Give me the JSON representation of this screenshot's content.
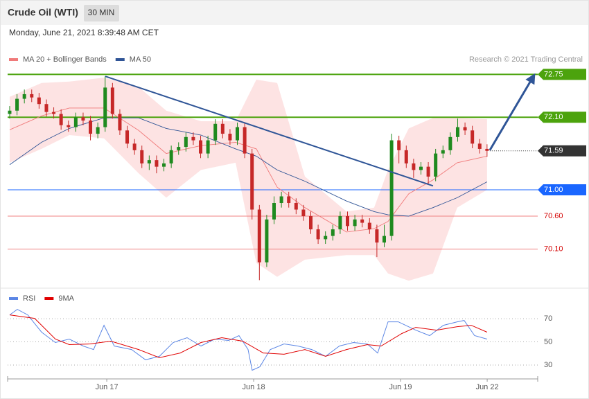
{
  "header": {
    "instrument": "Crude Oil (WTI)",
    "interval": "30 MIN",
    "timestamp": "Monday, June 21, 2021 8:39:48 AM CET"
  },
  "chart_data": [
    {
      "type": "candlestick",
      "credit": "Research © 2021 Trading Central",
      "xlim": [
        16.325,
        19.934
      ],
      "ylim": [
        69.55,
        72.88
      ],
      "up_color": "#1f8a1f",
      "down_color": "#c62828",
      "x": [
        16.339,
        16.389,
        16.439,
        16.489,
        16.539,
        16.589,
        16.639,
        16.689,
        16.739,
        16.789,
        16.839,
        16.889,
        16.939,
        16.989,
        17.039,
        17.089,
        17.139,
        17.189,
        17.239,
        17.289,
        17.339,
        17.389,
        17.439,
        17.489,
        17.539,
        17.589,
        17.639,
        17.689,
        17.739,
        17.789,
        17.839,
        17.889,
        17.939,
        17.989,
        18.039,
        18.089,
        18.139,
        18.189,
        18.239,
        18.289,
        18.339,
        18.389,
        18.439,
        18.489,
        18.539,
        18.589,
        18.639,
        18.689,
        18.739,
        18.789,
        18.839,
        18.889,
        18.939,
        18.989,
        19.039,
        19.089,
        19.139,
        19.189,
        19.239,
        19.289,
        19.339,
        19.389,
        19.439,
        19.489,
        19.539,
        19.589
      ],
      "open": [
        72.15,
        72.2,
        72.38,
        72.45,
        72.4,
        72.3,
        72.18,
        72.15,
        71.98,
        71.95,
        72.1,
        72.05,
        71.85,
        71.95,
        72.55,
        72.15,
        71.9,
        71.7,
        71.6,
        71.4,
        71.45,
        71.35,
        71.4,
        71.6,
        71.65,
        71.8,
        71.75,
        71.55,
        71.75,
        72.0,
        71.85,
        71.75,
        71.95,
        71.55,
        70.7,
        69.9,
        70.55,
        70.8,
        70.9,
        70.8,
        70.7,
        70.6,
        70.4,
        70.25,
        70.3,
        70.4,
        70.6,
        70.45,
        70.55,
        70.5,
        70.4,
        70.2,
        70.3,
        71.75,
        71.6,
        71.4,
        71.3,
        71.35,
        71.2,
        71.55,
        71.6,
        71.8,
        71.95,
        71.9,
        71.7,
        71.62
      ],
      "high": [
        72.27,
        72.45,
        72.52,
        72.52,
        72.47,
        72.37,
        72.25,
        72.22,
        72.05,
        72.17,
        72.17,
        72.12,
        72.02,
        72.72,
        72.62,
        72.22,
        71.97,
        71.77,
        71.67,
        71.52,
        71.52,
        71.47,
        71.67,
        71.72,
        71.87,
        71.87,
        71.82,
        71.82,
        72.07,
        72.07,
        71.92,
        72.02,
        72.02,
        71.62,
        70.77,
        70.62,
        70.9,
        70.97,
        70.97,
        70.87,
        70.77,
        70.67,
        70.47,
        70.37,
        70.47,
        70.67,
        70.67,
        70.62,
        70.62,
        70.57,
        70.47,
        70.47,
        71.85,
        71.82,
        71.67,
        71.47,
        71.42,
        71.42,
        71.62,
        71.67,
        71.87,
        72.08,
        72.02,
        71.97,
        71.77,
        71.69
      ],
      "low": [
        72.08,
        72.13,
        72.31,
        72.33,
        72.23,
        72.11,
        72.08,
        71.91,
        71.88,
        71.88,
        71.98,
        71.75,
        71.78,
        71.88,
        72.08,
        71.83,
        71.63,
        71.53,
        71.33,
        71.3,
        71.25,
        71.28,
        71.33,
        71.53,
        71.58,
        71.68,
        71.48,
        71.48,
        71.68,
        71.78,
        71.68,
        71.68,
        71.48,
        70.55,
        69.63,
        69.83,
        70.48,
        70.73,
        70.73,
        70.63,
        70.53,
        70.33,
        70.18,
        70.18,
        70.23,
        70.33,
        70.38,
        70.38,
        70.43,
        70.33,
        69.98,
        70.13,
        70.23,
        71.4,
        71.33,
        71.18,
        71.23,
        71.08,
        71.13,
        71.48,
        71.53,
        71.73,
        71.83,
        71.63,
        71.55,
        71.5
      ],
      "close": [
        72.2,
        72.38,
        72.45,
        72.4,
        72.3,
        72.18,
        72.15,
        71.98,
        71.95,
        72.1,
        72.05,
        71.85,
        71.95,
        72.55,
        72.15,
        71.9,
        71.7,
        71.6,
        71.4,
        71.45,
        71.35,
        71.4,
        71.6,
        71.65,
        71.8,
        71.75,
        71.55,
        71.75,
        72.0,
        71.85,
        71.75,
        71.95,
        71.55,
        70.7,
        69.9,
        70.55,
        70.8,
        70.9,
        70.8,
        70.7,
        70.6,
        70.4,
        70.25,
        70.3,
        70.4,
        70.6,
        70.45,
        70.55,
        70.5,
        70.4,
        70.2,
        70.3,
        71.75,
        71.6,
        71.4,
        71.3,
        71.35,
        71.2,
        71.55,
        71.6,
        71.8,
        71.95,
        71.9,
        71.7,
        71.62,
        71.59
      ],
      "series": [
        {
          "name": "MA 20 + Bollinger Bands",
          "color": "#f07a7a",
          "band_color": "#fde3e3",
          "x": [
            16.339,
            16.556,
            16.745,
            16.981,
            17.217,
            17.405,
            17.641,
            17.877,
            18.018,
            18.16,
            18.349,
            18.632,
            18.82,
            18.915,
            19.056,
            19.221,
            19.386,
            19.589
          ],
          "values": [
            71.91,
            72.12,
            72.24,
            72.24,
            71.9,
            71.55,
            71.67,
            71.72,
            71.62,
            71.04,
            70.73,
            70.36,
            70.41,
            70.52,
            70.94,
            71.15,
            71.41,
            71.51
          ],
          "upper": [
            72.41,
            72.62,
            72.64,
            72.7,
            72.56,
            72.2,
            72.04,
            72.04,
            72.67,
            72.62,
            71.2,
            70.67,
            70.73,
            71.3,
            71.93,
            72.09,
            72.09,
            72.07
          ],
          "lower": [
            71.41,
            71.62,
            71.83,
            71.78,
            71.25,
            70.88,
            71.3,
            71.41,
            69.89,
            69.68,
            69.94,
            70.01,
            70.01,
            69.73,
            69.62,
            69.73,
            70.73,
            71.0
          ]
        },
        {
          "name": "MA 50",
          "color": "#2f5496",
          "x": [
            16.339,
            16.556,
            16.745,
            16.981,
            17.217,
            17.405,
            17.641,
            17.877,
            18.018,
            18.16,
            18.349,
            18.632,
            18.82,
            18.915,
            19.056,
            19.221,
            19.386,
            19.589
          ],
          "values": [
            71.38,
            71.72,
            71.93,
            72.09,
            72.09,
            71.93,
            71.83,
            71.62,
            71.51,
            71.3,
            71.13,
            70.83,
            70.67,
            70.62,
            70.6,
            70.73,
            70.88,
            71.12
          ]
        }
      ],
      "trendlines": [
        {
          "color": "#2f5597",
          "x": [
            16.99,
            19.221
          ],
          "values": [
            72.72,
            71.06
          ]
        },
        {
          "color": "#2f5597",
          "arrow": true,
          "x": [
            19.608,
            19.91
          ],
          "values": [
            71.6,
            72.74
          ]
        }
      ],
      "levels": [
        {
          "value": 72.75,
          "color": "#4ca30d",
          "tag": true
        },
        {
          "value": 72.1,
          "label": "72.10",
          "color": "#4ca30d",
          "tag": true
        },
        {
          "value": 71.59,
          "color": "#333333",
          "tag": true,
          "style": "dotted"
        },
        {
          "value": 71,
          "label": "71.00",
          "color": "#1a66ff",
          "tag": true
        },
        {
          "value": 70.6,
          "label": "70.60",
          "color": "#f08080",
          "label_color": "#d40000"
        },
        {
          "value": 70.1,
          "label": "70.10",
          "color": "#f08080",
          "label_color": "#d40000"
        }
      ]
    },
    {
      "type": "line",
      "xlim": [
        16.325,
        19.934
      ],
      "ylim": [
        18,
        94
      ],
      "yticks": [
        30,
        50,
        70
      ],
      "grid": true,
      "xticks": [
        {
          "value": 17,
          "label": "Jun 17"
        },
        {
          "value": 18,
          "label": "Jun 18"
        },
        {
          "value": 19,
          "label": "Jun 19"
        },
        {
          "value": 19.59,
          "label": "Jun 22"
        }
      ],
      "series": [
        {
          "name": "RSI",
          "color": "#5b86e5",
          "x": [
            16.339,
            16.391,
            16.462,
            16.556,
            16.65,
            16.745,
            16.839,
            16.91,
            16.981,
            17.051,
            17.169,
            17.264,
            17.358,
            17.452,
            17.547,
            17.641,
            17.735,
            17.83,
            17.9,
            17.962,
            17.99,
            18.042,
            18.113,
            18.207,
            18.301,
            18.396,
            18.49,
            18.584,
            18.679,
            18.773,
            18.844,
            18.915,
            18.985,
            19.103,
            19.198,
            19.292,
            19.386,
            19.433,
            19.504,
            19.589
          ],
          "values": [
            73.3,
            78.1,
            73.3,
            58.4,
            49.4,
            52.4,
            46.4,
            43.4,
            64.3,
            46.4,
            43.4,
            34.5,
            37.5,
            49.4,
            53.6,
            46.4,
            52.4,
            51.2,
            55.4,
            43.4,
            25.5,
            28.5,
            43.4,
            48.2,
            46.4,
            43.4,
            37.5,
            46.4,
            49.4,
            48.2,
            40.4,
            67.3,
            67.3,
            60.1,
            55.4,
            64.3,
            67.3,
            68.5,
            55.4,
            52.4
          ]
        },
        {
          "name": "9MA",
          "color": "#e00000",
          "x": [
            16.339,
            16.509,
            16.65,
            16.745,
            16.886,
            17.028,
            17.217,
            17.358,
            17.5,
            17.641,
            17.783,
            17.925,
            18.066,
            18.207,
            18.349,
            18.49,
            18.632,
            18.773,
            18.868,
            19.009,
            19.103,
            19.245,
            19.386,
            19.481,
            19.589
          ],
          "values": [
            73.3,
            70.3,
            52.4,
            47.6,
            48.2,
            50.6,
            43.4,
            36.3,
            40.4,
            49.4,
            53.6,
            50.6,
            40.4,
            39.3,
            43.4,
            37.5,
            43.4,
            47.6,
            46.4,
            57.2,
            62.5,
            60.1,
            63.1,
            64.3,
            58.4
          ]
        }
      ]
    }
  ]
}
